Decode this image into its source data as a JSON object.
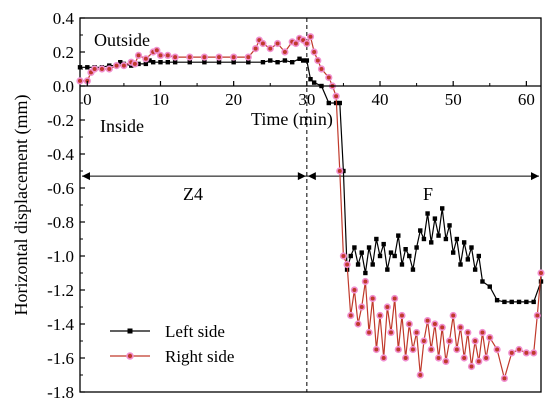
{
  "chart_data": {
    "type": "line",
    "xlabel": "Time (min)",
    "ylabel": "Horizontal displacement (mm)",
    "xlim": [
      -1,
      62
    ],
    "ylim": [
      -1.8,
      0.4
    ],
    "x_ticks": [
      0,
      10,
      20,
      30,
      40,
      50,
      60
    ],
    "y_ticks": [
      0.4,
      0.2,
      0.0,
      -0.2,
      -0.4,
      -0.6,
      -0.8,
      -1.0,
      -1.2,
      -1.4,
      -1.6,
      -1.8
    ],
    "y_tick_labels": [
      "0.4",
      "0.2",
      "0.0",
      "-0.2",
      "-0.4",
      "-0.6",
      "-0.8",
      "-1.0",
      "-1.2",
      "-1.4",
      "-1.6",
      "-1.8"
    ],
    "x_tick_labels": [
      "0",
      "10",
      "20",
      "30",
      "40",
      "50",
      "60"
    ],
    "grid": false,
    "legend_position": "bottom-left",
    "annotations": {
      "outside": "Outside",
      "inside": "Inside",
      "stage_a": "Z4",
      "stage_b": "F"
    },
    "stage_boundary_x": 30,
    "stage_arrow_y": -0.53,
    "series": [
      {
        "name": "Left side",
        "color": "#000000",
        "marker": "square",
        "points": [
          [
            -1,
            0.11
          ],
          [
            0,
            0.11
          ],
          [
            1,
            0.11
          ],
          [
            2,
            0.11
          ],
          [
            3,
            0.12
          ],
          [
            4,
            0.12
          ],
          [
            4.5,
            0.14
          ],
          [
            5,
            0.13
          ],
          [
            6,
            0.12
          ],
          [
            7,
            0.13
          ],
          [
            8,
            0.13
          ],
          [
            8.5,
            0.15
          ],
          [
            9,
            0.14
          ],
          [
            10,
            0.14
          ],
          [
            11,
            0.14
          ],
          [
            12,
            0.14
          ],
          [
            14,
            0.14
          ],
          [
            16,
            0.14
          ],
          [
            18,
            0.14
          ],
          [
            20,
            0.14
          ],
          [
            22,
            0.14
          ],
          [
            24,
            0.14
          ],
          [
            25,
            0.15
          ],
          [
            26,
            0.14
          ],
          [
            27,
            0.15
          ],
          [
            28,
            0.14
          ],
          [
            29,
            0.16
          ],
          [
            29.5,
            0.15
          ],
          [
            30,
            0.15
          ],
          [
            30.5,
            0.04
          ],
          [
            31,
            0.02
          ],
          [
            32,
            0.0
          ],
          [
            33,
            -0.1
          ],
          [
            34,
            -0.1
          ],
          [
            34.5,
            -0.1
          ],
          [
            35,
            -0.5
          ],
          [
            35.5,
            -1.08
          ],
          [
            36,
            -1.0
          ],
          [
            36.5,
            -0.95
          ],
          [
            37,
            -1.05
          ],
          [
            37.5,
            -0.98
          ],
          [
            38,
            -1.1
          ],
          [
            38.5,
            -0.95
          ],
          [
            39,
            -1.05
          ],
          [
            39.5,
            -0.9
          ],
          [
            40,
            -1.0
          ],
          [
            40.5,
            -0.93
          ],
          [
            41,
            -1.08
          ],
          [
            41.5,
            -0.98
          ],
          [
            42,
            -1.0
          ],
          [
            42.5,
            -0.88
          ],
          [
            43,
            -1.05
          ],
          [
            43.5,
            -0.96
          ],
          [
            44,
            -1.0
          ],
          [
            44.5,
            -1.08
          ],
          [
            45,
            -0.95
          ],
          [
            45.5,
            -0.85
          ],
          [
            46,
            -0.9
          ],
          [
            46.5,
            -0.75
          ],
          [
            47,
            -0.92
          ],
          [
            47.5,
            -0.78
          ],
          [
            48,
            -0.88
          ],
          [
            48.5,
            -0.72
          ],
          [
            49,
            -0.9
          ],
          [
            49.5,
            -0.82
          ],
          [
            50,
            -0.98
          ],
          [
            50.5,
            -0.9
          ],
          [
            51,
            -1.05
          ],
          [
            51.5,
            -0.92
          ],
          [
            52,
            -1.02
          ],
          [
            52.5,
            -0.95
          ],
          [
            53,
            -1.08
          ],
          [
            53.5,
            -1.0
          ],
          [
            54,
            -1.15
          ],
          [
            55,
            -1.18
          ],
          [
            56,
            -1.26
          ],
          [
            57,
            -1.27
          ],
          [
            58,
            -1.27
          ],
          [
            59,
            -1.27
          ],
          [
            60,
            -1.27
          ],
          [
            61,
            -1.27
          ],
          [
            62,
            -1.15
          ]
        ]
      },
      {
        "name": "Right side",
        "color": "#c0392b",
        "marker": "circle",
        "points": [
          [
            -1,
            0.03
          ],
          [
            0,
            0.03
          ],
          [
            0.5,
            0.08
          ],
          [
            1,
            0.1
          ],
          [
            2,
            0.1
          ],
          [
            3,
            0.1
          ],
          [
            4,
            0.12
          ],
          [
            5,
            0.12
          ],
          [
            6,
            0.14
          ],
          [
            6.5,
            0.13
          ],
          [
            7,
            0.18
          ],
          [
            8,
            0.16
          ],
          [
            9,
            0.2
          ],
          [
            9.5,
            0.21
          ],
          [
            10,
            0.18
          ],
          [
            11,
            0.18
          ],
          [
            12,
            0.17
          ],
          [
            14,
            0.17
          ],
          [
            16,
            0.17
          ],
          [
            18,
            0.17
          ],
          [
            20,
            0.17
          ],
          [
            22,
            0.17
          ],
          [
            23,
            0.22
          ],
          [
            23.5,
            0.27
          ],
          [
            24,
            0.25
          ],
          [
            25,
            0.22
          ],
          [
            26,
            0.25
          ],
          [
            27,
            0.2
          ],
          [
            28,
            0.26
          ],
          [
            28.5,
            0.25
          ],
          [
            29,
            0.28
          ],
          [
            29.5,
            0.27
          ],
          [
            30,
            0.25
          ],
          [
            30.5,
            0.29
          ],
          [
            31,
            0.2
          ],
          [
            31.5,
            0.15
          ],
          [
            32,
            0.1
          ],
          [
            33,
            0.05
          ],
          [
            33.5,
            0.0
          ],
          [
            34,
            -0.06
          ],
          [
            34.5,
            -0.5
          ],
          [
            35,
            -1.0
          ],
          [
            35.5,
            -1.05
          ],
          [
            36,
            -1.35
          ],
          [
            36.5,
            -1.2
          ],
          [
            37,
            -1.4
          ],
          [
            37.5,
            -1.3
          ],
          [
            38,
            -1.15
          ],
          [
            38.5,
            -1.45
          ],
          [
            39,
            -1.25
          ],
          [
            39.5,
            -1.55
          ],
          [
            40,
            -1.35
          ],
          [
            40.5,
            -1.6
          ],
          [
            41,
            -1.3
          ],
          [
            41.5,
            -1.45
          ],
          [
            42,
            -1.25
          ],
          [
            42.5,
            -1.55
          ],
          [
            43,
            -1.35
          ],
          [
            43.5,
            -1.6
          ],
          [
            44,
            -1.4
          ],
          [
            44.5,
            -1.55
          ],
          [
            45,
            -1.45
          ],
          [
            45.5,
            -1.7
          ],
          [
            46,
            -1.5
          ],
          [
            46.5,
            -1.38
          ],
          [
            47,
            -1.55
          ],
          [
            47.5,
            -1.4
          ],
          [
            48,
            -1.6
          ],
          [
            48.5,
            -1.42
          ],
          [
            49,
            -1.62
          ],
          [
            49.5,
            -1.5
          ],
          [
            50,
            -1.35
          ],
          [
            50.5,
            -1.55
          ],
          [
            51,
            -1.42
          ],
          [
            51.5,
            -1.6
          ],
          [
            52,
            -1.45
          ],
          [
            52.5,
            -1.65
          ],
          [
            53,
            -1.5
          ],
          [
            53.5,
            -1.62
          ],
          [
            54,
            -1.45
          ],
          [
            54.5,
            -1.6
          ],
          [
            55,
            -1.48
          ],
          [
            56,
            -1.55
          ],
          [
            57,
            -1.72
          ],
          [
            58,
            -1.57
          ],
          [
            59,
            -1.55
          ],
          [
            60,
            -1.57
          ],
          [
            61,
            -1.57
          ],
          [
            61.5,
            -1.35
          ],
          [
            62,
            -1.1
          ]
        ]
      }
    ]
  }
}
